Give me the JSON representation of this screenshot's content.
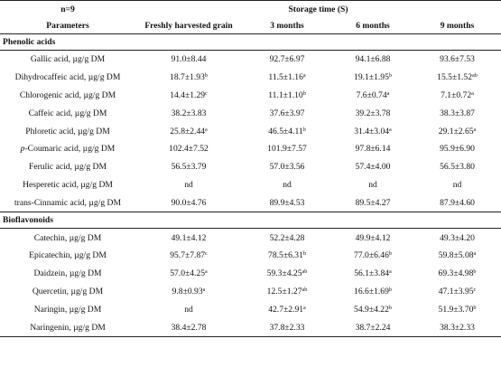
{
  "header": {
    "n": "n=9",
    "storage": "Storage time (S)",
    "columns": [
      "Parameters",
      "Freshly harvested grain",
      "3 months",
      "6 months",
      "9 months"
    ]
  },
  "sections": [
    {
      "title": "Phenolic acids",
      "rows": [
        {
          "label": "Gallic acid, µg/g DM",
          "cells": [
            [
              "91.0±8.44",
              ""
            ],
            [
              "92.7±6.97",
              ""
            ],
            [
              "94.1±6.88",
              ""
            ],
            [
              "93.6±7.53",
              ""
            ]
          ]
        },
        {
          "label": "Dihydrocaffeic acid, µg/g DM",
          "cells": [
            [
              "18.7±1.93",
              "b"
            ],
            [
              "11.5±1.16",
              "a"
            ],
            [
              "19.1±1.95",
              "b"
            ],
            [
              "15.5±1.52",
              "ab"
            ]
          ]
        },
        {
          "label": "Chlorogenic acid, µg/g DM",
          "cells": [
            [
              "14.4±1.29",
              "c"
            ],
            [
              "11.1±1.10",
              "b"
            ],
            [
              "7.6±0.74",
              "a"
            ],
            [
              "7.1±0.72",
              "a"
            ]
          ]
        },
        {
          "label": "Caffeic acid, µg/g DM",
          "cells": [
            [
              "38.2±3.83",
              ""
            ],
            [
              "37.6±3.97",
              ""
            ],
            [
              "39.2±3.78",
              ""
            ],
            [
              "38.3±3.87",
              ""
            ]
          ]
        },
        {
          "label": "Phloretic acid, µg/g DM",
          "cells": [
            [
              "25.8±2.44",
              "a"
            ],
            [
              "46.5±4.11",
              "b"
            ],
            [
              "31.4±3.04",
              "a"
            ],
            [
              "29.1±2.65",
              "a"
            ]
          ]
        },
        {
          "label": "-Coumaric acid, µg/g DM",
          "prefix": "p",
          "cells": [
            [
              "102.4±7.52",
              ""
            ],
            [
              "101.9±7.57",
              ""
            ],
            [
              "97.8±6.14",
              ""
            ],
            [
              "95.9±6.90",
              ""
            ]
          ]
        },
        {
          "label": "Ferulic acid, µg/g DM",
          "cells": [
            [
              "56.5±3.79",
              ""
            ],
            [
              "57.0±3.56",
              ""
            ],
            [
              "57.4±4.00",
              ""
            ],
            [
              "56.5±3.80",
              ""
            ]
          ]
        },
        {
          "label": "Hesperetic acid, µg/g DM",
          "cells": [
            [
              "nd",
              ""
            ],
            [
              "nd",
              ""
            ],
            [
              "nd",
              ""
            ],
            [
              "nd",
              ""
            ]
          ]
        },
        {
          "label": "trans-Cinnamic acid, µg/g DM",
          "cells": [
            [
              "90.0±4.76",
              ""
            ],
            [
              "89.9±4.53",
              ""
            ],
            [
              "89.5±4.27",
              ""
            ],
            [
              "87.9±4.60",
              ""
            ]
          ]
        }
      ]
    },
    {
      "title": "Bioflavonoids",
      "rows": [
        {
          "label": "Catechin, µg/g DM",
          "cells": [
            [
              "49.1±4.12",
              ""
            ],
            [
              "52.2±4.28",
              ""
            ],
            [
              "49.9±4.12",
              ""
            ],
            [
              "49.3±4.20",
              ""
            ]
          ]
        },
        {
          "label": "Epicatechin, µg/g DM",
          "cells": [
            [
              "95.7±7.87",
              "c"
            ],
            [
              "78.5±6.31",
              "b"
            ],
            [
              "77.0±6.46",
              "b"
            ],
            [
              "59.8±5.08",
              "a"
            ]
          ]
        },
        {
          "label": "Daidzein, µg/g DM",
          "cells": [
            [
              "57.0±4.25",
              "a"
            ],
            [
              "59.3±4.25",
              "ab"
            ],
            [
              "56.1±3.84",
              "a"
            ],
            [
              "69.3±4.98",
              "b"
            ]
          ]
        },
        {
          "label": "Quercetin, µg/g DM",
          "cells": [
            [
              "9.8±0.93",
              "a"
            ],
            [
              "12.5±1.27",
              "ab"
            ],
            [
              "16.6±1.69",
              "b"
            ],
            [
              "47.1±3.95",
              "c"
            ]
          ]
        },
        {
          "label": "Naringin, µg/g DM",
          "cells": [
            [
              "nd",
              ""
            ],
            [
              "42.7±2.91",
              "a"
            ],
            [
              "54.9±4.22",
              "b"
            ],
            [
              "51.9±3.70",
              "b"
            ]
          ]
        },
        {
          "label": "Naringenin, µg/g DM",
          "cells": [
            [
              "38.4±2.78",
              ""
            ],
            [
              "37.8±2.33",
              ""
            ],
            [
              "38.7±2.24",
              ""
            ],
            [
              "38.3±2.33",
              ""
            ]
          ]
        }
      ]
    }
  ]
}
